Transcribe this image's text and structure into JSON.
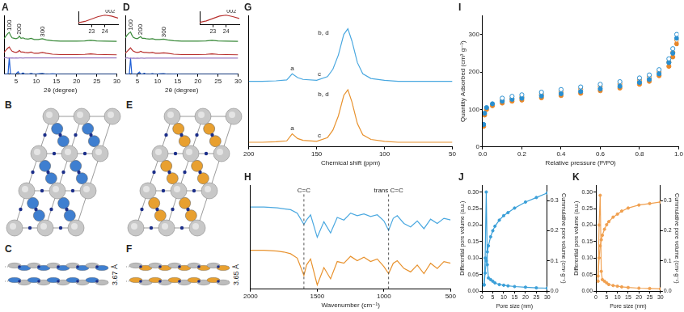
{
  "chart_data": [
    {
      "type": "line",
      "title": "A",
      "x": [
        2,
        2.5,
        3,
        3.3,
        3.6,
        4,
        4.5,
        5,
        5.5,
        5.8,
        6.2,
        6.7,
        7.2,
        8,
        8.7,
        9.5,
        10.5,
        11.5,
        12.5,
        14,
        16,
        18,
        20,
        22,
        23.5,
        25,
        27,
        30
      ],
      "series": [
        {
          "color": "#3a8a3a",
          "values": [
            8.5,
            9.2,
            9.8,
            10.0,
            9.3,
            8.7,
            8.6,
            8.5,
            8.7,
            9.1,
            8.6,
            8.7,
            8.5,
            8.4,
            8.6,
            8.3,
            8.3,
            8.5,
            8.2,
            8.0,
            7.9,
            7.9,
            7.9,
            7.95,
            8.1,
            7.95,
            7.9,
            7.85
          ]
        },
        {
          "color": "#b8312f",
          "values": [
            5.2,
            5.8,
            6.3,
            6.5,
            6.0,
            5.5,
            5.3,
            5.2,
            5.4,
            5.7,
            5.3,
            5.3,
            5.2,
            5.1,
            5.3,
            5.0,
            5.0,
            5.2,
            5.0,
            4.8,
            4.7,
            4.7,
            4.7,
            4.75,
            4.85,
            4.75,
            4.7,
            4.65
          ]
        },
        {
          "color": "#9b7fc4",
          "values": [
            3.9,
            4.0,
            3.8,
            3.95,
            3.85,
            3.9,
            3.85,
            3.9,
            3.85,
            3.9,
            3.9,
            3.85,
            3.9,
            3.9,
            3.9,
            3.9,
            3.9,
            3.9,
            3.9,
            3.9,
            3.9,
            3.9,
            3.9,
            3.9,
            3.9,
            3.9,
            3.9,
            3.9
          ]
        },
        {
          "color": "#1f5fd6",
          "values": [
            0,
            0,
            0.1,
            4.0,
            0.1,
            0,
            0,
            0.1,
            0.6,
            0.1,
            0,
            0.3,
            0,
            0,
            0.2,
            0,
            0.1,
            0.2,
            0,
            0.1,
            0,
            0,
            0,
            0,
            0,
            0,
            0,
            0
          ]
        }
      ],
      "xlim": [
        2,
        30
      ],
      "xticks": [
        5,
        10,
        15,
        20,
        25,
        30
      ],
      "ylim": [
        0,
        14
      ],
      "xlabel": "2θ (degree)",
      "tick_labels": "x",
      "grid": false,
      "annotations": [
        {
          "text": "100",
          "x": 3.3,
          "y": 10.4
        },
        {
          "text": "200",
          "x": 5.8,
          "y": 9.5
        },
        {
          "text": "300",
          "x": 11.5,
          "y": 8.9
        }
      ]
    },
    {
      "type": "line",
      "x": [
        22,
        22.5,
        23,
        23.5,
        24,
        24.5,
        25
      ],
      "series": [
        {
          "color": "#b8312f",
          "values": [
            0.2,
            0.35,
            0.6,
            0.85,
            1.0,
            0.9,
            0.7
          ]
        }
      ],
      "xlim": [
        22,
        25
      ],
      "xticks": [
        23,
        24
      ],
      "ylim": [
        0,
        1.4
      ],
      "tick_labels": "x",
      "grid": false,
      "annotations": [
        {
          "text": "002",
          "x": 24.4,
          "y": 1.1
        }
      ]
    },
    {
      "type": "line",
      "title": "D",
      "x": [
        2,
        2.5,
        3,
        3.3,
        3.6,
        4,
        4.5,
        5,
        5.5,
        5.8,
        6.2,
        6.7,
        7.2,
        8,
        8.7,
        9.5,
        10.5,
        11.5,
        12.5,
        14,
        16,
        18,
        20,
        22,
        23.5,
        25,
        27,
        30
      ],
      "series": [
        {
          "color": "#3a8a3a",
          "values": [
            8.7,
            9.4,
            9.9,
            10.1,
            9.4,
            8.8,
            8.6,
            8.5,
            8.8,
            9.0,
            8.6,
            8.6,
            8.5,
            8.4,
            8.5,
            8.3,
            8.3,
            8.4,
            8.2,
            8.0,
            7.9,
            7.9,
            7.9,
            7.95,
            8.1,
            7.95,
            7.9,
            7.85
          ]
        },
        {
          "color": "#b8312f",
          "values": [
            5.0,
            5.5,
            6.0,
            6.3,
            5.9,
            5.5,
            5.3,
            5.2,
            5.3,
            5.5,
            5.3,
            5.2,
            5.2,
            5.1,
            5.2,
            5.0,
            5.0,
            5.1,
            5.0,
            4.8,
            4.7,
            4.7,
            4.7,
            4.75,
            4.85,
            4.75,
            4.7,
            4.65
          ]
        },
        {
          "color": "#9b7fc4",
          "values": [
            3.8,
            3.95,
            3.75,
            3.9,
            3.8,
            3.85,
            3.8,
            3.85,
            3.8,
            3.85,
            3.85,
            3.8,
            3.85,
            3.85,
            3.85,
            3.85,
            3.85,
            3.85,
            3.85,
            3.85,
            3.85,
            3.85,
            3.85,
            3.85,
            3.85,
            3.85,
            3.85,
            3.85
          ]
        },
        {
          "color": "#1f5fd6",
          "values": [
            0,
            0,
            0.1,
            3.8,
            0.1,
            0,
            0,
            0.1,
            0.5,
            0.1,
            0,
            0.2,
            0,
            0,
            0.15,
            0,
            0.1,
            0.15,
            0,
            0.05,
            0,
            0,
            0,
            0,
            0,
            0,
            0,
            0
          ]
        }
      ],
      "xlim": [
        2,
        30
      ],
      "xticks": [
        5,
        10,
        15,
        20,
        25,
        30
      ],
      "ylim": [
        0,
        14
      ],
      "xlabel": "2θ (degree)",
      "tick_labels": "x",
      "grid": false,
      "annotations": [
        {
          "text": "100",
          "x": 3.3,
          "y": 10.5
        },
        {
          "text": "200",
          "x": 5.8,
          "y": 9.4
        },
        {
          "text": "300",
          "x": 11.5,
          "y": 8.8
        }
      ]
    },
    {
      "type": "line",
      "x": [
        22,
        22.5,
        23,
        23.5,
        24,
        24.5,
        25
      ],
      "series": [
        {
          "color": "#b8312f",
          "values": [
            0.25,
            0.4,
            0.65,
            0.9,
            1.0,
            0.85,
            0.65
          ]
        }
      ],
      "xlim": [
        22,
        25
      ],
      "xticks": [
        23,
        24
      ],
      "ylim": [
        0,
        1.4
      ],
      "tick_labels": "x",
      "grid": false,
      "annotations": [
        {
          "text": "002",
          "x": 24.4,
          "y": 1.1
        }
      ]
    },
    {
      "type": "line",
      "title": "G",
      "x": [
        200,
        190,
        180,
        172,
        168,
        164,
        160,
        150,
        142,
        138,
        134,
        130,
        127,
        124,
        120,
        116,
        110,
        100,
        90,
        80,
        70,
        60,
        50
      ],
      "series": [
        {
          "color": "#4aa8e0",
          "values": [
            6.5,
            6.5,
            6.55,
            6.65,
            7.3,
            6.9,
            6.7,
            6.6,
            7.0,
            7.8,
            9.3,
            11.5,
            12.1,
            10.8,
            8.5,
            7.3,
            6.8,
            6.6,
            6.5,
            6.5,
            6.5,
            6.5,
            6.5
          ]
        },
        {
          "color": "#e8922e",
          "values": [
            0,
            0,
            0.05,
            0.15,
            0.9,
            0.4,
            0.2,
            0.1,
            0.5,
            1.3,
            2.8,
            5.0,
            5.6,
            4.3,
            2.0,
            0.8,
            0.3,
            0.1,
            0,
            0,
            0,
            0,
            0
          ]
        }
      ],
      "xlim": [
        200,
        50
      ],
      "xticks": [
        200,
        150,
        100,
        50
      ],
      "ylim": [
        -0.5,
        13.5
      ],
      "xlabel": "Chemical shift (ppm)",
      "tick_labels": "x",
      "grid": false,
      "annotations": [
        {
          "text": "a",
          "x": 168,
          "y": 7.5
        },
        {
          "text": "b, d",
          "x": 145,
          "y": 11.3
        },
        {
          "text": "c",
          "x": 148,
          "y": 6.9
        },
        {
          "text": "a",
          "x": 168,
          "y": 1.1
        },
        {
          "text": "b, d",
          "x": 145,
          "y": 4.8
        },
        {
          "text": "c",
          "x": 148,
          "y": 0.4
        }
      ]
    },
    {
      "type": "line",
      "title": "H",
      "x": [
        2000,
        1900,
        1800,
        1750,
        1700,
        1650,
        1600,
        1580,
        1550,
        1500,
        1450,
        1400,
        1350,
        1300,
        1250,
        1200,
        1150,
        1100,
        1050,
        1000,
        965,
        930,
        900,
        850,
        800,
        750,
        700,
        650,
        600,
        550,
        500
      ],
      "series": [
        {
          "color": "#4aa8e0",
          "values": [
            9.5,
            9.5,
            9.4,
            9.3,
            9.2,
            8.8,
            7.5,
            8.0,
            8.6,
            6.0,
            7.8,
            6.5,
            8.3,
            8.0,
            8.8,
            8.5,
            8.7,
            8.4,
            8.6,
            7.9,
            6.8,
            8.2,
            8.5,
            7.6,
            7.2,
            7.9,
            7.0,
            8.1,
            7.6,
            8.2,
            8.0
          ]
        },
        {
          "color": "#e8922e",
          "values": [
            4.5,
            4.5,
            4.4,
            4.3,
            4.1,
            3.6,
            1.6,
            2.8,
            3.5,
            0.5,
            2.5,
            1.2,
            3.2,
            3.0,
            3.8,
            3.3,
            3.7,
            3.2,
            3.5,
            2.6,
            1.8,
            3.0,
            3.3,
            2.4,
            2.0,
            2.8,
            1.8,
            3.0,
            2.4,
            3.2,
            3.0
          ]
        }
      ],
      "xlim": [
        2000,
        500
      ],
      "xticks": [
        2000,
        1500,
        1000,
        500
      ],
      "ylim": [
        0,
        12
      ],
      "xlabel": "Wavenumber (cm⁻¹)",
      "tick_labels": "x",
      "grid": false,
      "annotations": [
        {
          "text": "C=C",
          "x": 1600,
          "line_style": "dashed"
        },
        {
          "text": "trans C=C",
          "x": 965,
          "line_style": "dashed"
        }
      ]
    },
    {
      "type": "scatter",
      "title": "I",
      "x": [
        0.005,
        0.01,
        0.02,
        0.05,
        0.1,
        0.15,
        0.2,
        0.3,
        0.4,
        0.5,
        0.6,
        0.7,
        0.8,
        0.85,
        0.9,
        0.95,
        0.97,
        0.99
      ],
      "series": [
        {
          "color": "#2a8fd0",
          "marker": "open",
          "values": [
            null,
            null,
            null,
            null,
            130,
            135,
            139,
            146,
            153,
            160,
            167,
            174,
            184,
            192,
            206,
            235,
            262,
            300
          ]
        },
        {
          "color": "#2a8fd0",
          "marker": "circle",
          "values": [
            60,
            90,
            105,
            115,
            122,
            127,
            130,
            136,
            142,
            148,
            155,
            162,
            172,
            180,
            195,
            225,
            250,
            290
          ]
        },
        {
          "color": "#e8872a",
          "marker": "open",
          "values": [
            null,
            null,
            null,
            null,
            124,
            129,
            133,
            140,
            147,
            154,
            161,
            168,
            178,
            186,
            200,
            226,
            252,
            285
          ]
        },
        {
          "color": "#e8872a",
          "marker": "circle",
          "values": [
            55,
            85,
            100,
            110,
            117,
            122,
            125,
            131,
            137,
            143,
            150,
            157,
            167,
            175,
            190,
            215,
            240,
            275
          ]
        }
      ],
      "xlim": [
        0,
        1
      ],
      "xticks": [
        {
          "value": 0,
          "label": "0.0"
        },
        0.2,
        0.4,
        0.6,
        0.8,
        {
          "value": 1,
          "label": "1.0"
        }
      ],
      "ylim": [
        0,
        350
      ],
      "yticks": [
        0,
        100,
        200,
        300
      ],
      "xlabel": "Relative pressure (P/P0)",
      "ylabel": "Quantity Adsorbed (cm³ g⁻¹)",
      "grid": false
    },
    {
      "type": "line",
      "title": "J",
      "x": [
        1,
        1.5,
        2,
        2.5,
        3,
        4,
        5,
        6,
        8,
        10,
        12,
        15,
        20,
        25,
        30
      ],
      "series": [
        {
          "color": "#3a9fd8",
          "marker": "circle",
          "values": [
            0.02,
            0.1,
            0.3,
            0.08,
            0.04,
            0.035,
            0.03,
            0.025,
            0.02,
            0.018,
            0.016,
            0.014,
            0.012,
            0.01,
            0.009
          ]
        },
        {
          "color": "#3a9fd8",
          "marker": "circle",
          "axis": "y2",
          "values": [
            0.02,
            0.06,
            0.1,
            0.13,
            0.15,
            0.18,
            0.2,
            0.215,
            0.235,
            0.25,
            0.26,
            0.275,
            0.295,
            0.31,
            0.325
          ]
        }
      ],
      "xlim": [
        0,
        30
      ],
      "xticks": [
        0,
        5,
        10,
        15,
        20,
        25,
        30
      ],
      "ylim": [
        0,
        0.32
      ],
      "yticks": [
        {
          "value": 0,
          "label": "0.00"
        },
        0.05,
        {
          "value": 0.1,
          "label": "0.10"
        },
        0.15,
        {
          "value": 0.2,
          "label": "0.20"
        },
        0.25,
        {
          "value": 0.3,
          "label": "0.30"
        }
      ],
      "y2lim": [
        0,
        0.35
      ],
      "y2ticks": [
        {
          "value": 0,
          "label": "0.0"
        },
        0.1,
        0.2,
        0.3
      ],
      "xlabel": "Pore size (nm)",
      "ylabel": "Differential pore volume (a.u.)",
      "y2label": "Cummulative pore volume (cm³ g⁻¹)",
      "grid": false
    },
    {
      "type": "line",
      "title": "K",
      "x": [
        1,
        1.5,
        2,
        2.5,
        3,
        4,
        5,
        6,
        8,
        10,
        12,
        15,
        20,
        25,
        30
      ],
      "series": [
        {
          "color": "#f0a050",
          "marker": "circle",
          "values": [
            0.03,
            0.2,
            0.29,
            0.06,
            0.035,
            0.03,
            0.025,
            0.02,
            0.017,
            0.015,
            0.013,
            0.011,
            0.009,
            0.008,
            0.007
          ]
        },
        {
          "color": "#f0a050",
          "marker": "circle",
          "axis": "y2",
          "values": [
            0.05,
            0.11,
            0.15,
            0.17,
            0.185,
            0.205,
            0.22,
            0.23,
            0.245,
            0.255,
            0.265,
            0.275,
            0.285,
            0.29,
            0.295
          ]
        }
      ],
      "xlim": [
        0,
        30
      ],
      "xticks": [
        0,
        5,
        10,
        15,
        20,
        25,
        30
      ],
      "ylim": [
        0,
        0.32
      ],
      "yticks": [
        {
          "value": 0,
          "label": "0.00"
        },
        0.05,
        {
          "value": 0.1,
          "label": "0.10"
        },
        0.15,
        {
          "value": 0.2,
          "label": "0.20"
        },
        0.25,
        {
          "value": 0.3,
          "label": "0.30"
        }
      ],
      "y2lim": [
        0,
        0.35
      ],
      "y2ticks": [
        {
          "value": 0,
          "label": "0.0"
        },
        0.1,
        0.2,
        0.3
      ],
      "xlabel": "Pore size (nm)",
      "ylabel": "Differential pore volume (a.u.)",
      "y2label": "Cummulative pore volume (cm³ g⁻¹)",
      "grid": false
    }
  ],
  "structures": [
    {
      "panel": "B",
      "color": "#3f7fd0"
    },
    {
      "panel": "C",
      "color": "#3f7fd0",
      "label": "3.67 Å"
    },
    {
      "panel": "E",
      "color": "#e8a030"
    },
    {
      "panel": "F",
      "color": "#e8a030",
      "label": "3.65 Å"
    }
  ]
}
